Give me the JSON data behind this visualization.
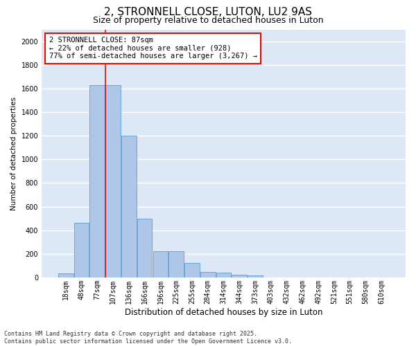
{
  "title": "2, STRONNELL CLOSE, LUTON, LU2 9AS",
  "subtitle": "Size of property relative to detached houses in Luton",
  "xlabel": "Distribution of detached houses by size in Luton",
  "ylabel": "Number of detached properties",
  "categories": [
    "18sqm",
    "48sqm",
    "77sqm",
    "107sqm",
    "136sqm",
    "166sqm",
    "196sqm",
    "225sqm",
    "255sqm",
    "284sqm",
    "314sqm",
    "344sqm",
    "373sqm",
    "403sqm",
    "432sqm",
    "462sqm",
    "492sqm",
    "521sqm",
    "551sqm",
    "580sqm",
    "610sqm"
  ],
  "values": [
    35,
    460,
    1630,
    1630,
    1200,
    500,
    220,
    220,
    120,
    48,
    40,
    25,
    18,
    0,
    0,
    0,
    0,
    0,
    0,
    0,
    0
  ],
  "bar_color": "#aec6e8",
  "bar_edge_color": "#5a9fd4",
  "vline_color": "red",
  "vline_x_index": 2,
  "annotation_text": "2 STRONNELL CLOSE: 87sqm\n← 22% of detached houses are smaller (928)\n77% of semi-detached houses are larger (3,267) →",
  "annotation_box_color": "red",
  "annotation_box_fill": "white",
  "ylim": [
    0,
    2100
  ],
  "yticks": [
    0,
    200,
    400,
    600,
    800,
    1000,
    1200,
    1400,
    1600,
    1800,
    2000
  ],
  "background_color": "#dde8f7",
  "grid_color": "white",
  "footer": "Contains HM Land Registry data © Crown copyright and database right 2025.\nContains public sector information licensed under the Open Government Licence v3.0.",
  "title_fontsize": 11,
  "subtitle_fontsize": 9,
  "xlabel_fontsize": 8.5,
  "ylabel_fontsize": 7.5,
  "tick_fontsize": 7,
  "annotation_fontsize": 7.5,
  "footer_fontsize": 6
}
